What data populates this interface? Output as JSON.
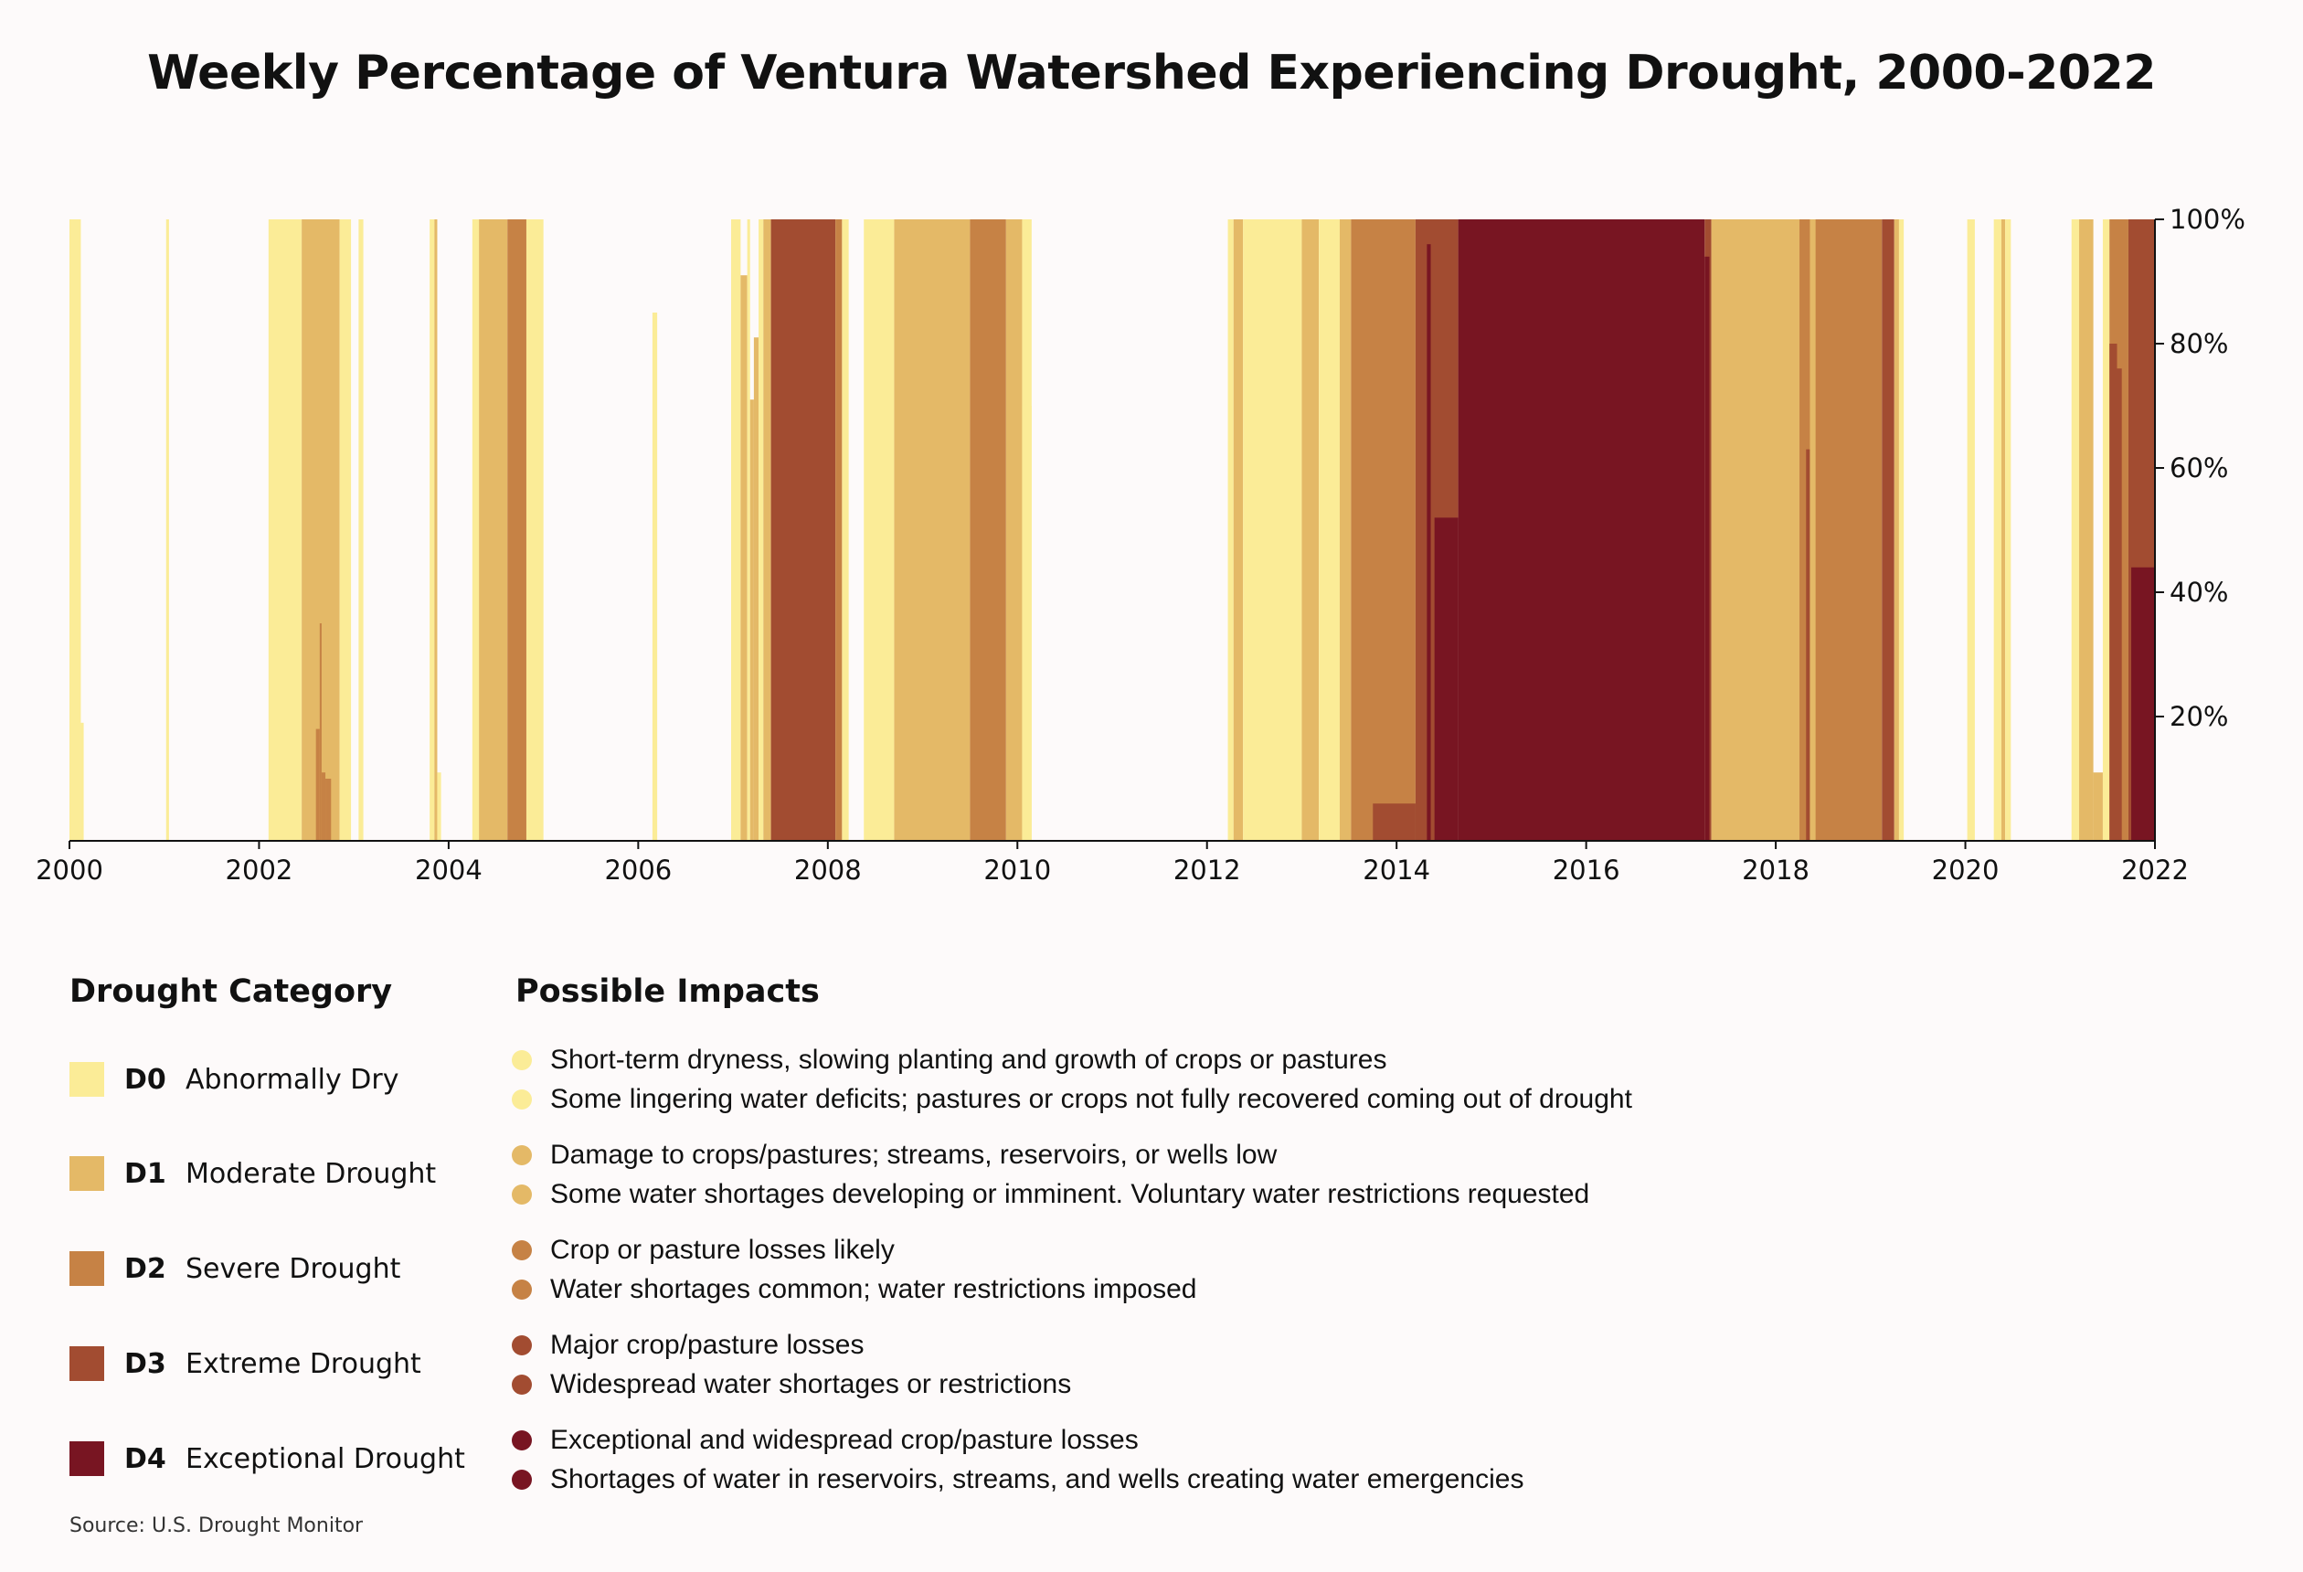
{
  "title": "Weekly Percentage of Ventura Watershed Experiencing Drought, 2000-2022",
  "source": "Source: U.S. Drought Monitor",
  "legend": {
    "categories_heading": "Drought Category",
    "impacts_heading": "Possible Impacts",
    "categories": [
      {
        "code": "D0",
        "name": "Abnormally Dry",
        "color": "#fbec97"
      },
      {
        "code": "D1",
        "name": "Moderate Drought",
        "color": "#e4b967"
      },
      {
        "code": "D2",
        "name": "Severe Drought",
        "color": "#c68245"
      },
      {
        "code": "D3",
        "name": "Extreme Drought",
        "color": "#a24c31"
      },
      {
        "code": "D4",
        "name": "Exceptional Drought",
        "color": "#781522"
      }
    ],
    "impacts": [
      [
        "Short-term dryness, slowing planting and growth of crops or pastures",
        "Some lingering water deficits; pastures or crops not fully recovered coming out of drought"
      ],
      [
        "Damage to crops/pastures; streams, reservoirs, or wells low",
        "Some water shortages developing or imminent. Voluntary water restrictions requested"
      ],
      [
        "Crop or pasture losses likely",
        "Water shortages common; water restrictions imposed"
      ],
      [
        "Major crop/pasture losses",
        "Widespread water shortages or restrictions"
      ],
      [
        "Exceptional and widespread crop/pasture losses",
        "Shortages of water in reservoirs, streams, and wells creating water emergencies"
      ]
    ]
  },
  "chart_data": {
    "type": "area",
    "title": "Weekly Percentage of Ventura Watershed Experiencing Drought, 2000-2022",
    "xlim": [
      2000,
      2022
    ],
    "ylim": [
      0,
      100
    ],
    "x_ticks": [
      "2000",
      "2002",
      "2004",
      "2006",
      "2008",
      "2010",
      "2012",
      "2014",
      "2016",
      "2018",
      "2020",
      "2022"
    ],
    "y_ticks": [
      "20%",
      "40%",
      "60%",
      "80%",
      "100%"
    ],
    "y_tick_values": [
      20,
      40,
      60,
      80,
      100
    ],
    "y_axis_side": "right",
    "grid": false,
    "series_note": "Each segment: drought category covering the given percentage of the watershed (0 to top) between start and end year.",
    "segments": [
      {
        "cat": "D0",
        "start": 2000.0,
        "end": 2000.12,
        "top": 100
      },
      {
        "cat": "D0",
        "start": 2000.12,
        "end": 2000.15,
        "top": 19
      },
      {
        "cat": "D0",
        "start": 2001.02,
        "end": 2001.05,
        "top": 100
      },
      {
        "cat": "D0",
        "start": 2002.1,
        "end": 2002.45,
        "top": 100
      },
      {
        "cat": "D1",
        "start": 2002.45,
        "end": 2002.85,
        "top": 100
      },
      {
        "cat": "D2",
        "start": 2002.6,
        "end": 2002.64,
        "top": 18
      },
      {
        "cat": "D2",
        "start": 2002.64,
        "end": 2002.66,
        "top": 35
      },
      {
        "cat": "D2",
        "start": 2002.66,
        "end": 2002.7,
        "top": 11
      },
      {
        "cat": "D2",
        "start": 2002.7,
        "end": 2002.76,
        "top": 10
      },
      {
        "cat": "D0",
        "start": 2002.85,
        "end": 2002.97,
        "top": 100
      },
      {
        "cat": "D0",
        "start": 2003.05,
        "end": 2003.1,
        "top": 100
      },
      {
        "cat": "D0",
        "start": 2003.8,
        "end": 2003.85,
        "top": 100
      },
      {
        "cat": "D1",
        "start": 2003.85,
        "end": 2003.88,
        "top": 100
      },
      {
        "cat": "D0",
        "start": 2003.88,
        "end": 2003.92,
        "top": 11
      },
      {
        "cat": "D0",
        "start": 2004.25,
        "end": 2004.32,
        "top": 100
      },
      {
        "cat": "D1",
        "start": 2004.32,
        "end": 2004.62,
        "top": 100
      },
      {
        "cat": "D2",
        "start": 2004.62,
        "end": 2004.82,
        "top": 100
      },
      {
        "cat": "D0",
        "start": 2004.82,
        "end": 2005.0,
        "top": 100
      },
      {
        "cat": "D0",
        "start": 2006.15,
        "end": 2006.2,
        "top": 85
      },
      {
        "cat": "D0",
        "start": 2006.98,
        "end": 2007.08,
        "top": 100
      },
      {
        "cat": "D1",
        "start": 2007.08,
        "end": 2007.15,
        "top": 91
      },
      {
        "cat": "D0",
        "start": 2007.15,
        "end": 2007.18,
        "top": 100
      },
      {
        "cat": "D1",
        "start": 2007.18,
        "end": 2007.22,
        "top": 71
      },
      {
        "cat": "D1",
        "start": 2007.22,
        "end": 2007.27,
        "top": 81
      },
      {
        "cat": "D0",
        "start": 2007.27,
        "end": 2007.32,
        "top": 100
      },
      {
        "cat": "D1",
        "start": 2007.32,
        "end": 2007.4,
        "top": 100
      },
      {
        "cat": "D3",
        "start": 2007.4,
        "end": 2008.08,
        "top": 100
      },
      {
        "cat": "D2",
        "start": 2008.08,
        "end": 2008.15,
        "top": 100
      },
      {
        "cat": "D0",
        "start": 2008.15,
        "end": 2008.22,
        "top": 100
      },
      {
        "cat": "D0",
        "start": 2008.38,
        "end": 2008.7,
        "top": 100
      },
      {
        "cat": "D1",
        "start": 2008.7,
        "end": 2009.5,
        "top": 100
      },
      {
        "cat": "D2",
        "start": 2009.5,
        "end": 2009.88,
        "top": 100
      },
      {
        "cat": "D1",
        "start": 2009.88,
        "end": 2010.05,
        "top": 100
      },
      {
        "cat": "D0",
        "start": 2010.05,
        "end": 2010.15,
        "top": 70
      },
      {
        "cat": "D0",
        "start": 2010.05,
        "end": 2010.15,
        "top": 100
      },
      {
        "cat": "D0",
        "start": 2012.22,
        "end": 2012.28,
        "top": 100
      },
      {
        "cat": "D1",
        "start": 2012.28,
        "end": 2012.38,
        "top": 100
      },
      {
        "cat": "D0",
        "start": 2012.38,
        "end": 2013.0,
        "top": 100
      },
      {
        "cat": "D1",
        "start": 2013.0,
        "end": 2013.18,
        "top": 100
      },
      {
        "cat": "D0",
        "start": 2013.18,
        "end": 2013.4,
        "top": 100
      },
      {
        "cat": "D1",
        "start": 2013.4,
        "end": 2013.52,
        "top": 100
      },
      {
        "cat": "D2",
        "start": 2013.52,
        "end": 2014.2,
        "top": 100
      },
      {
        "cat": "D3",
        "start": 2013.75,
        "end": 2014.2,
        "top": 6
      },
      {
        "cat": "D3",
        "start": 2014.2,
        "end": 2014.65,
        "top": 100
      },
      {
        "cat": "D4",
        "start": 2014.32,
        "end": 2014.36,
        "top": 96
      },
      {
        "cat": "D4",
        "start": 2014.4,
        "end": 2014.65,
        "top": 52
      },
      {
        "cat": "D4",
        "start": 2014.65,
        "end": 2017.25,
        "top": 100
      },
      {
        "cat": "D3",
        "start": 2017.25,
        "end": 2017.32,
        "top": 100
      },
      {
        "cat": "D4",
        "start": 2017.25,
        "end": 2017.3,
        "top": 94
      },
      {
        "cat": "D1",
        "start": 2017.32,
        "end": 2018.25,
        "top": 100
      },
      {
        "cat": "D2",
        "start": 2018.25,
        "end": 2019.12,
        "top": 100
      },
      {
        "cat": "D3",
        "start": 2018.32,
        "end": 2018.36,
        "top": 63
      },
      {
        "cat": "D1",
        "start": 2018.36,
        "end": 2018.42,
        "top": 100
      },
      {
        "cat": "D3",
        "start": 2019.12,
        "end": 2019.25,
        "top": 100
      },
      {
        "cat": "D1",
        "start": 2019.25,
        "end": 2019.3,
        "top": 100
      },
      {
        "cat": "D0",
        "start": 2019.3,
        "end": 2019.35,
        "top": 100
      },
      {
        "cat": "D0",
        "start": 2020.02,
        "end": 2020.1,
        "top": 100
      },
      {
        "cat": "D0",
        "start": 2020.3,
        "end": 2020.38,
        "top": 100
      },
      {
        "cat": "D1",
        "start": 2020.38,
        "end": 2020.42,
        "top": 100
      },
      {
        "cat": "D0",
        "start": 2020.42,
        "end": 2020.48,
        "top": 100
      },
      {
        "cat": "D0",
        "start": 2021.12,
        "end": 2021.2,
        "top": 100
      },
      {
        "cat": "D1",
        "start": 2021.2,
        "end": 2021.35,
        "top": 100
      },
      {
        "cat": "D1",
        "start": 2021.35,
        "end": 2021.45,
        "top": 11
      },
      {
        "cat": "D0",
        "start": 2021.45,
        "end": 2021.52,
        "top": 100
      },
      {
        "cat": "D2",
        "start": 2021.52,
        "end": 2021.72,
        "top": 100
      },
      {
        "cat": "D3",
        "start": 2021.52,
        "end": 2021.6,
        "top": 80
      },
      {
        "cat": "D3",
        "start": 2021.6,
        "end": 2021.65,
        "top": 76
      },
      {
        "cat": "D3",
        "start": 2021.72,
        "end": 2022.0,
        "top": 100
      },
      {
        "cat": "D4",
        "start": 2021.75,
        "end": 2022.0,
        "top": 44
      }
    ]
  }
}
